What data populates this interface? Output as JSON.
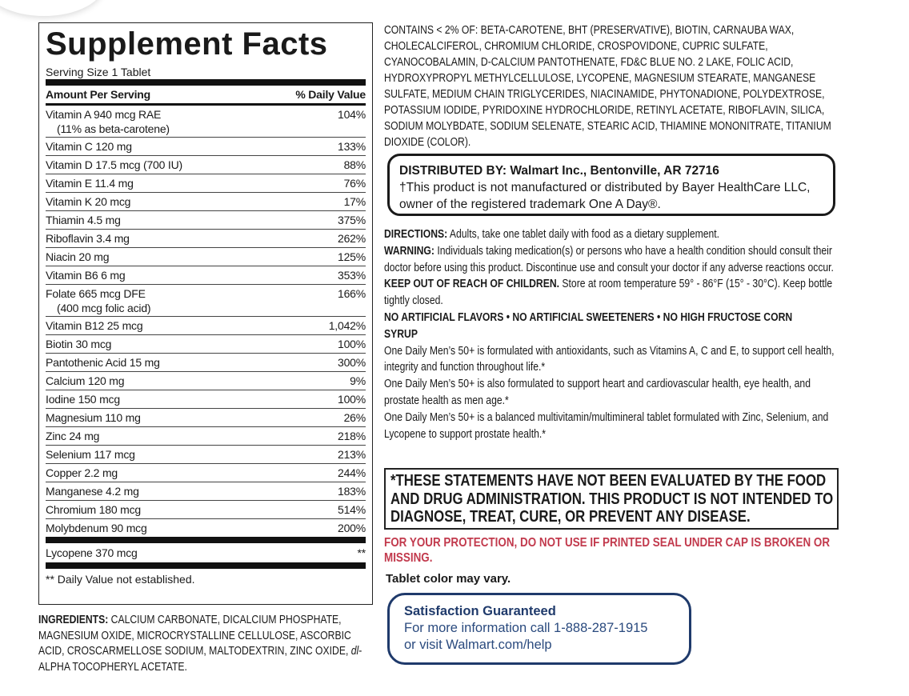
{
  "supplement_facts": {
    "title": "Supplement Facts",
    "serving_size": "Serving Size 1 Tablet",
    "header": [
      "Amount Per Serving",
      "% Daily Value"
    ],
    "rows": [
      {
        "name": "Vitamin A 940 mcg RAE",
        "sub": "(11% as beta-carotene)",
        "dv": "104%"
      },
      {
        "name": "Vitamin C 120 mg",
        "dv": "133%"
      },
      {
        "name": "Vitamin D 17.5 mcg (700 IU)",
        "dv": "88%"
      },
      {
        "name": "Vitamin E 11.4 mg",
        "dv": "76%"
      },
      {
        "name": "Vitamin K 20 mcg",
        "dv": "17%"
      },
      {
        "name": "Thiamin 4.5 mg",
        "dv": "375%"
      },
      {
        "name": "Riboflavin 3.4 mg",
        "dv": "262%"
      },
      {
        "name": "Niacin 20 mg",
        "dv": "125%"
      },
      {
        "name": "Vitamin B6 6 mg",
        "dv": "353%"
      },
      {
        "name": "Folate 665 mcg DFE",
        "sub": "(400 mcg folic acid)",
        "dv": "166%"
      },
      {
        "name": "Vitamin B12 25 mcg",
        "dv": "1,042%"
      },
      {
        "name": "Biotin 30 mcg",
        "dv": "100%"
      },
      {
        "name": "Pantothenic Acid 15 mg",
        "dv": "300%"
      },
      {
        "name": "Calcium 120 mg",
        "dv": "9%"
      },
      {
        "name": "Iodine 150 mcg",
        "dv": "100%"
      },
      {
        "name": "Magnesium 110 mg",
        "dv": "26%"
      },
      {
        "name": "Zinc 24 mg",
        "dv": "218%"
      },
      {
        "name": "Selenium 117 mcg",
        "dv": "213%"
      },
      {
        "name": "Copper 2.2 mg",
        "dv": "244%"
      },
      {
        "name": "Manganese 4.2 mg",
        "dv": "183%"
      },
      {
        "name": "Chromium 180 mcg",
        "dv": "514%"
      },
      {
        "name": "Molybdenum 90 mcg",
        "dv": "200%"
      }
    ],
    "lycopene": {
      "name": "Lycopene 370 mcg",
      "dv": "**"
    },
    "footnote": "** Daily Value not established."
  },
  "ingredients": {
    "label": "INGREDIENTS:",
    "text_1": "CALCIUM CARBONATE, DICALCIUM PHOSPHATE, MAGNESIUM OXIDE, MICROCRYSTALLINE CELLULOSE, ASCORBIC ACID, CROSCARMELLOSE SODIUM, MALTODEXTRIN, ZINC OXIDE,",
    "italic": "dl",
    "text_2": "-ALPHA TOCOPHERYL ACETATE."
  },
  "contains": "CONTAINS < 2% OF: BETA-CAROTENE, BHT (PRESERVATIVE), BIOTIN, CARNAUBA WAX, CHOLECALCIFEROL, CHROMIUM CHLORIDE, CROSPOVIDONE, CUPRIC SULFATE, CYANOCOBALAMIN, D-CALCIUM PANTOTHENATE, FD&C BLUE NO. 2 LAKE, FOLIC ACID, HYDROXYPROPYL METHYLCELLULOSE, LYCOPENE, MAGNESIUM STEARATE, MANGANESE SULFATE, MEDIUM CHAIN TRIGLYCERIDES, NIACINAMIDE, PHYTONADIONE, POLYDEXTROSE, POTASSIUM IODIDE, PYRIDOXINE HYDROCHLORIDE, RETINYL ACETATE, RIBOFLAVIN, SILICA, SODIUM MOLYBDATE, SODIUM SELENATE, STEARIC ACID, THIAMINE MONONITRATE, TITANIUM DIOXIDE (COLOR).",
  "distributed": {
    "title": "DISTRIBUTED BY: Walmart Inc., Bentonville, AR 72716",
    "text": "†This product is not manufactured or distributed by Bayer HealthCare LLC, owner of the registered trademark One A Day®."
  },
  "directions": {
    "label": "DIRECTIONS:",
    "text": "Adults, take one tablet daily with food as a dietary supplement."
  },
  "warning": {
    "label": "WARNING:",
    "text": "Individuals taking medication(s) or persons who have a health condition should consult their doctor before using this product. Discontinue use and consult your doctor if any adverse reactions occur."
  },
  "keep_out": {
    "label": "KEEP OUT OF REACH OF CHILDREN.",
    "text": "Store at room temperature 59° - 86°F (15° - 30°C). Keep bottle tightly closed."
  },
  "no_artificial": "NO ARTIFICIAL FLAVORS • NO ARTIFICIAL SWEETENERS • NO HIGH FRUCTOSE CORN SYRUP",
  "claims": [
    "One Daily Men’s 50+ is formulated with antioxidants, such as Vitamins A, C and E, to support cell health, integrity and function throughout life.*",
    "One Daily Men’s 50+ is also formulated to support heart and cardiovascular health, eye health, and prostate health as men age.*",
    "One Daily Men’s 50+ is a balanced multivitamin/multimineral tablet formulated with Zinc, Selenium, and Lycopene to support prostate health.*"
  ],
  "statement": "*THESE STATEMENTS HAVE NOT BEEN EVALUATED BY THE FOOD AND DRUG ADMINISTRATION. THIS PRODUCT IS NOT INTENDED TO DIAGNOSE, TREAT, CURE, OR PREVENT ANY DISEASE.",
  "protection": "FOR YOUR PROTECTION, DO NOT USE IF PRINTED SEAL UNDER CAP IS BROKEN OR MISSING.",
  "color_note": "Tablet color may vary.",
  "satisfaction": {
    "title": "Satisfaction Guaranteed",
    "lines": [
      "For more information call 1-888-287-1915",
      "or visit Walmart.com/help"
    ]
  }
}
